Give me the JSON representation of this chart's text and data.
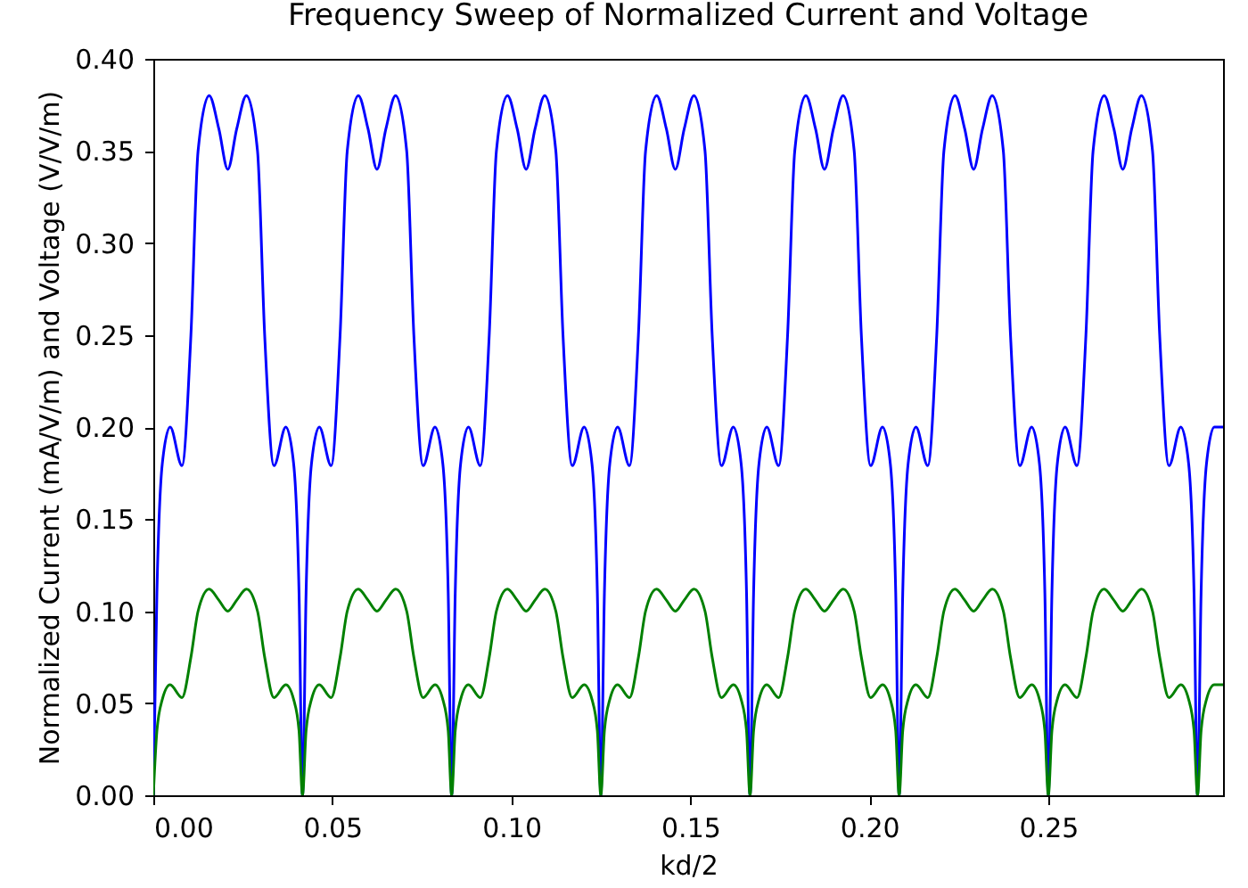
{
  "chart_data": {
    "type": "line",
    "title": "Frequency Sweep of Normalized Current and Voltage",
    "xlabel": "kd/2",
    "ylabel": "Normalized Current (mA/V/m) and Voltage (V/V/m)",
    "xlim": [
      0,
      0.2988
    ],
    "ylim": [
      0,
      0.4
    ],
    "xticks": [
      {
        "value": 0,
        "label": "0.00"
      },
      {
        "value": 0.05,
        "label": "0.05"
      },
      {
        "value": 0.1,
        "label": "0.10"
      },
      {
        "value": 0.15,
        "label": "0.15"
      },
      {
        "value": 0.2,
        "label": "0.20"
      },
      {
        "value": 0.25,
        "label": "0.25"
      }
    ],
    "yticks": [
      {
        "value": 0,
        "label": "0.00"
      },
      {
        "value": 0.05,
        "label": "0.05"
      },
      {
        "value": 0.1,
        "label": "0.10"
      },
      {
        "value": 0.15,
        "label": "0.15"
      },
      {
        "value": 0.2,
        "label": "0.20"
      },
      {
        "value": 0.25,
        "label": "0.25"
      },
      {
        "value": 0.3,
        "label": "0.30"
      },
      {
        "value": 0.35,
        "label": "0.35"
      },
      {
        "value": 0.4,
        "label": "0.40"
      }
    ],
    "x": [
      0,
      0.001,
      0.0025,
      0.0047,
      0.008,
      0.0105,
      0.0125,
      0.0156,
      0.0183,
      0.0208,
      0.0233,
      0.026,
      0.0291,
      0.0311,
      0.0337,
      0.037,
      0.0392,
      0.0407,
      0.04167,
      0.04267,
      0.04417,
      0.04637,
      0.04967,
      0.05217,
      0.05417,
      0.05727,
      0.05997,
      0.06247,
      0.06497,
      0.06767,
      0.07077,
      0.07277,
      0.07537,
      0.07867,
      0.08087,
      0.08237,
      0.08333,
      0.08433,
      0.08583,
      0.08803,
      0.09133,
      0.09383,
      0.09583,
      0.09893,
      0.10163,
      0.10413,
      0.10663,
      0.10933,
      0.11243,
      0.11443,
      0.11703,
      0.12033,
      0.12253,
      0.12403,
      0.125,
      0.126,
      0.1275,
      0.1297,
      0.133,
      0.1355,
      0.1375,
      0.1406,
      0.1433,
      0.1458,
      0.1483,
      0.151,
      0.1541,
      0.1561,
      0.1587,
      0.162,
      0.1642,
      0.1657,
      0.16667,
      0.16767,
      0.16917,
      0.17137,
      0.17467,
      0.17717,
      0.17917,
      0.18227,
      0.18497,
      0.18747,
      0.18997,
      0.19267,
      0.19577,
      0.19777,
      0.20037,
      0.20367,
      0.20587,
      0.20737,
      0.20833,
      0.20933,
      0.21083,
      0.21303,
      0.21633,
      0.21883,
      0.22083,
      0.22393,
      0.22663,
      0.22913,
      0.23163,
      0.23433,
      0.23743,
      0.23943,
      0.24203,
      0.24533,
      0.24753,
      0.24903,
      0.25,
      0.251,
      0.2525,
      0.2547,
      0.258,
      0.2605,
      0.2625,
      0.2656,
      0.2683,
      0.2708,
      0.2733,
      0.276,
      0.2791,
      0.2811,
      0.2837,
      0.287,
      0.2892,
      0.2907,
      0.29167,
      0.29267,
      0.29417,
      0.29637,
      0.2988
    ],
    "series": [
      {
        "color": "#0000ff",
        "values": [
          0,
          0.11,
          0.18,
          0.2,
          0.179,
          0.25,
          0.35,
          0.38,
          0.362,
          0.34,
          0.362,
          0.38,
          0.35,
          0.25,
          0.179,
          0.2,
          0.18,
          0.11,
          0,
          0.11,
          0.18,
          0.2,
          0.179,
          0.25,
          0.35,
          0.38,
          0.362,
          0.34,
          0.362,
          0.38,
          0.35,
          0.25,
          0.179,
          0.2,
          0.18,
          0.11,
          0,
          0.11,
          0.18,
          0.2,
          0.179,
          0.25,
          0.35,
          0.38,
          0.362,
          0.34,
          0.362,
          0.38,
          0.35,
          0.25,
          0.179,
          0.2,
          0.18,
          0.11,
          0,
          0.11,
          0.18,
          0.2,
          0.179,
          0.25,
          0.35,
          0.38,
          0.362,
          0.34,
          0.362,
          0.38,
          0.35,
          0.25,
          0.179,
          0.2,
          0.18,
          0.11,
          0,
          0.11,
          0.18,
          0.2,
          0.179,
          0.25,
          0.35,
          0.38,
          0.362,
          0.34,
          0.362,
          0.38,
          0.35,
          0.25,
          0.179,
          0.2,
          0.18,
          0.11,
          0,
          0.11,
          0.18,
          0.2,
          0.179,
          0.25,
          0.35,
          0.38,
          0.362,
          0.34,
          0.362,
          0.38,
          0.35,
          0.25,
          0.179,
          0.2,
          0.18,
          0.11,
          0,
          0.11,
          0.18,
          0.2,
          0.179,
          0.25,
          0.35,
          0.38,
          0.362,
          0.34,
          0.362,
          0.38,
          0.35,
          0.25,
          0.179,
          0.2,
          0.18,
          0.11,
          0,
          0.11,
          0.18,
          0.2,
          0.2
        ]
      },
      {
        "color": "#008000",
        "values": [
          0,
          0.035,
          0.052,
          0.06,
          0.053,
          0.075,
          0.1,
          0.112,
          0.106,
          0.1,
          0.106,
          0.112,
          0.1,
          0.075,
          0.053,
          0.06,
          0.052,
          0.035,
          0,
          0.035,
          0.052,
          0.06,
          0.053,
          0.075,
          0.1,
          0.112,
          0.106,
          0.1,
          0.106,
          0.112,
          0.1,
          0.075,
          0.053,
          0.06,
          0.052,
          0.035,
          0,
          0.035,
          0.052,
          0.06,
          0.053,
          0.075,
          0.1,
          0.112,
          0.106,
          0.1,
          0.106,
          0.112,
          0.1,
          0.075,
          0.053,
          0.06,
          0.052,
          0.035,
          0,
          0.035,
          0.052,
          0.06,
          0.053,
          0.075,
          0.1,
          0.112,
          0.106,
          0.1,
          0.106,
          0.112,
          0.1,
          0.075,
          0.053,
          0.06,
          0.052,
          0.035,
          0,
          0.035,
          0.052,
          0.06,
          0.053,
          0.075,
          0.1,
          0.112,
          0.106,
          0.1,
          0.106,
          0.112,
          0.1,
          0.075,
          0.053,
          0.06,
          0.052,
          0.035,
          0,
          0.035,
          0.052,
          0.06,
          0.053,
          0.075,
          0.1,
          0.112,
          0.106,
          0.1,
          0.106,
          0.112,
          0.1,
          0.075,
          0.053,
          0.06,
          0.052,
          0.035,
          0,
          0.035,
          0.052,
          0.06,
          0.053,
          0.075,
          0.1,
          0.112,
          0.106,
          0.1,
          0.106,
          0.112,
          0.1,
          0.075,
          0.053,
          0.06,
          0.052,
          0.035,
          0,
          0.035,
          0.052,
          0.06,
          0.06
        ]
      }
    ]
  }
}
